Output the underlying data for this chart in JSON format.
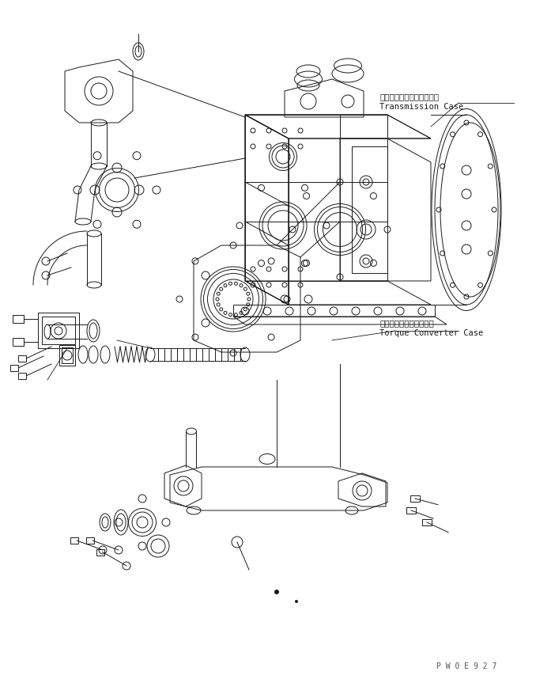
{
  "bg_color": "#ffffff",
  "line_color": "#1a1a1a",
  "label1_jp": "トランスミッションケース",
  "label1_en": "Transmission Case",
  "label2_jp": "トルクコンバータケース",
  "label2_en": "Torque Converter Case",
  "watermark": "P W 0 E 9 2 7",
  "fig_width": 6.78,
  "fig_height": 8.58,
  "dpi": 100
}
